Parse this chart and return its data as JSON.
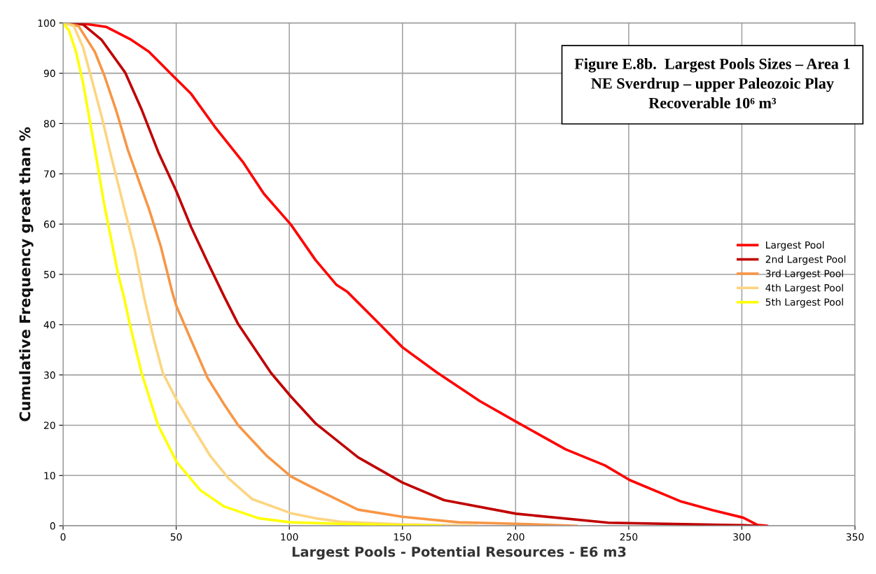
{
  "chart_data": {
    "type": "line",
    "title": "Figure E.8b.  Largest Pools Sizes – Area 1\nNE Sverdrup – upper Paleozoic Play\nRecoverable 10⁶ m³",
    "xlabel": "Largest Pools - Potential Resources - E6 m3",
    "ylabel": "Cumulative Frequency great than %",
    "xlim": [
      0,
      350
    ],
    "xticks": [
      0,
      50,
      100,
      150,
      200,
      250,
      300,
      350
    ],
    "ylim": [
      0,
      100
    ],
    "yticks": [
      0,
      10,
      20,
      30,
      40,
      50,
      60,
      70,
      80,
      90,
      100
    ],
    "grid": true,
    "legend": "right",
    "marker": "none",
    "line_style": "solid",
    "series": [
      {
        "name": "Largest Pool",
        "color": "#ff0000",
        "x": [
          0,
          7,
          19.2,
          29.6,
          37.9,
          48.3,
          56.6,
          67,
          79.4,
          88.8,
          100.7,
          111.5,
          120.9,
          125.7,
          139.9,
          150,
          165.2,
          184.2,
          200.2,
          222.1,
          239.5,
          250.4,
          272.7,
          287,
          300.7,
          306.7,
          311.1
        ],
        "values": [
          100,
          100,
          99.2,
          96.8,
          94.3,
          89.6,
          85.9,
          79.4,
          72.4,
          66.0,
          59.9,
          52.9,
          47.9,
          46.5,
          40.1,
          35.5,
          30.5,
          24.8,
          20.7,
          15.2,
          12.0,
          9.1,
          4.9,
          3.1,
          1.6,
          0.2,
          0
        ]
      },
      {
        "name": "2nd Largest Pool",
        "color": "#c00000",
        "x": [
          0,
          8.8,
          17.1,
          27.5,
          34.8,
          42.1,
          50,
          56.6,
          63.9,
          71.1,
          77.4,
          91.9,
          100.7,
          111.5,
          130.4,
          150,
          168.4,
          200.2,
          241.1,
          300.7,
          306.7
        ],
        "values": [
          100,
          99.7,
          96.6,
          90.1,
          82.7,
          74.3,
          66.6,
          59.4,
          52.4,
          45.7,
          40.1,
          30.4,
          25.7,
          20.4,
          13.6,
          8.6,
          5.1,
          2.4,
          0.6,
          0.1,
          0
        ]
      },
      {
        "name": "3rd Largest Pool",
        "color": "#f79646",
        "x": [
          0,
          6.8,
          14,
          18.2,
          23.4,
          28.6,
          32.7,
          37.9,
          43.1,
          48.3,
          50,
          56.6,
          63.9,
          71.1,
          77.4,
          89.8,
          100.7,
          108.5,
          123.1,
          130.4,
          150,
          174.7,
          200.2,
          226.9
        ],
        "values": [
          100,
          99.4,
          94.3,
          89.6,
          82.7,
          74.8,
          69.6,
          63.1,
          55.7,
          46.4,
          43.8,
          36.9,
          29.4,
          24.2,
          20.0,
          14.0,
          9.8,
          8.0,
          4.8,
          3.2,
          1.8,
          0.7,
          0.4,
          0
        ]
      },
      {
        "name": "4th Largest Pool",
        "color": "#fcd581",
        "x": [
          0,
          4.7,
          8.8,
          13,
          17.1,
          21.3,
          26.5,
          31.7,
          35.8,
          40,
          44.1,
          50,
          56.6,
          64.9,
          73.2,
          83.6,
          100.7,
          111.5,
          122.7,
          150,
          182.6
        ],
        "values": [
          100,
          99.4,
          95.2,
          88.2,
          81.3,
          73.4,
          64.1,
          54.8,
          45.5,
          37.3,
          30.4,
          25.2,
          20.1,
          14.0,
          9.4,
          5.3,
          2.5,
          1.5,
          0.8,
          0.3,
          0
        ]
      },
      {
        "name": "5th Largest Pool",
        "color": "#ffff00",
        "x": [
          0,
          2.6,
          5.7,
          8.8,
          11.9,
          15,
          18.1,
          21.2,
          24.3,
          26.9,
          29.5,
          34.7,
          41.9,
          50.2,
          60.6,
          70.9,
          86.4,
          100.4,
          122.7,
          150,
          166.8
        ],
        "values": [
          100,
          98.5,
          94.3,
          88.2,
          80.3,
          72.4,
          64.1,
          57.1,
          50.1,
          45.5,
          40.1,
          30.4,
          20.1,
          12.7,
          7.1,
          3.9,
          1.5,
          0.7,
          0.4,
          0.1,
          0
        ]
      }
    ]
  }
}
